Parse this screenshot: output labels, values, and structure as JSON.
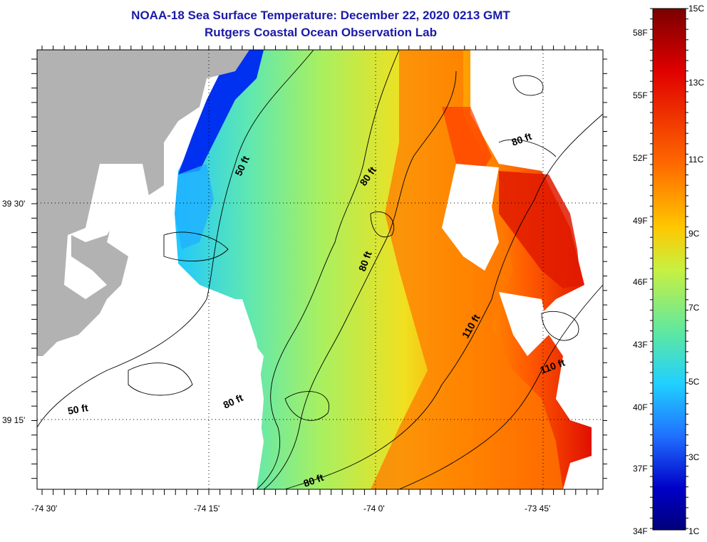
{
  "header": {
    "title": "NOAA-18 Sea Surface Temperature:  December 22, 2020 0213 GMT",
    "subtitle": "Rutgers Coastal Ocean Observation Lab"
  },
  "map": {
    "lon_ticks": [
      "-74 30'",
      "-74 15'",
      "-74 0'",
      "-73 45'"
    ],
    "lat_ticks": [
      "39 30'",
      "39 15'"
    ],
    "contour_labels": [
      "50 ft",
      "80 ft",
      "80 ft",
      "80 ft",
      "110 ft",
      "110 ft",
      "80 ft",
      "50 ft",
      "80 ft"
    ],
    "land_color": "#b2b2b2",
    "nodata_color": "#ffffff"
  },
  "colorbar": {
    "celsius_labels": [
      "15C",
      "13C",
      "11C",
      "9C",
      "7C",
      "5C",
      "3C",
      "1C"
    ],
    "fahrenheit_labels": [
      "58F",
      "55F",
      "52F",
      "49F",
      "46F",
      "43F",
      "40F",
      "37F",
      "34F"
    ],
    "stops": [
      "#7a0000",
      "#e00000",
      "#ff6a00",
      "#ffc800",
      "#c8f040",
      "#5fe8a0",
      "#20d0ff",
      "#2070ff",
      "#0000c8",
      "#00007a"
    ]
  }
}
